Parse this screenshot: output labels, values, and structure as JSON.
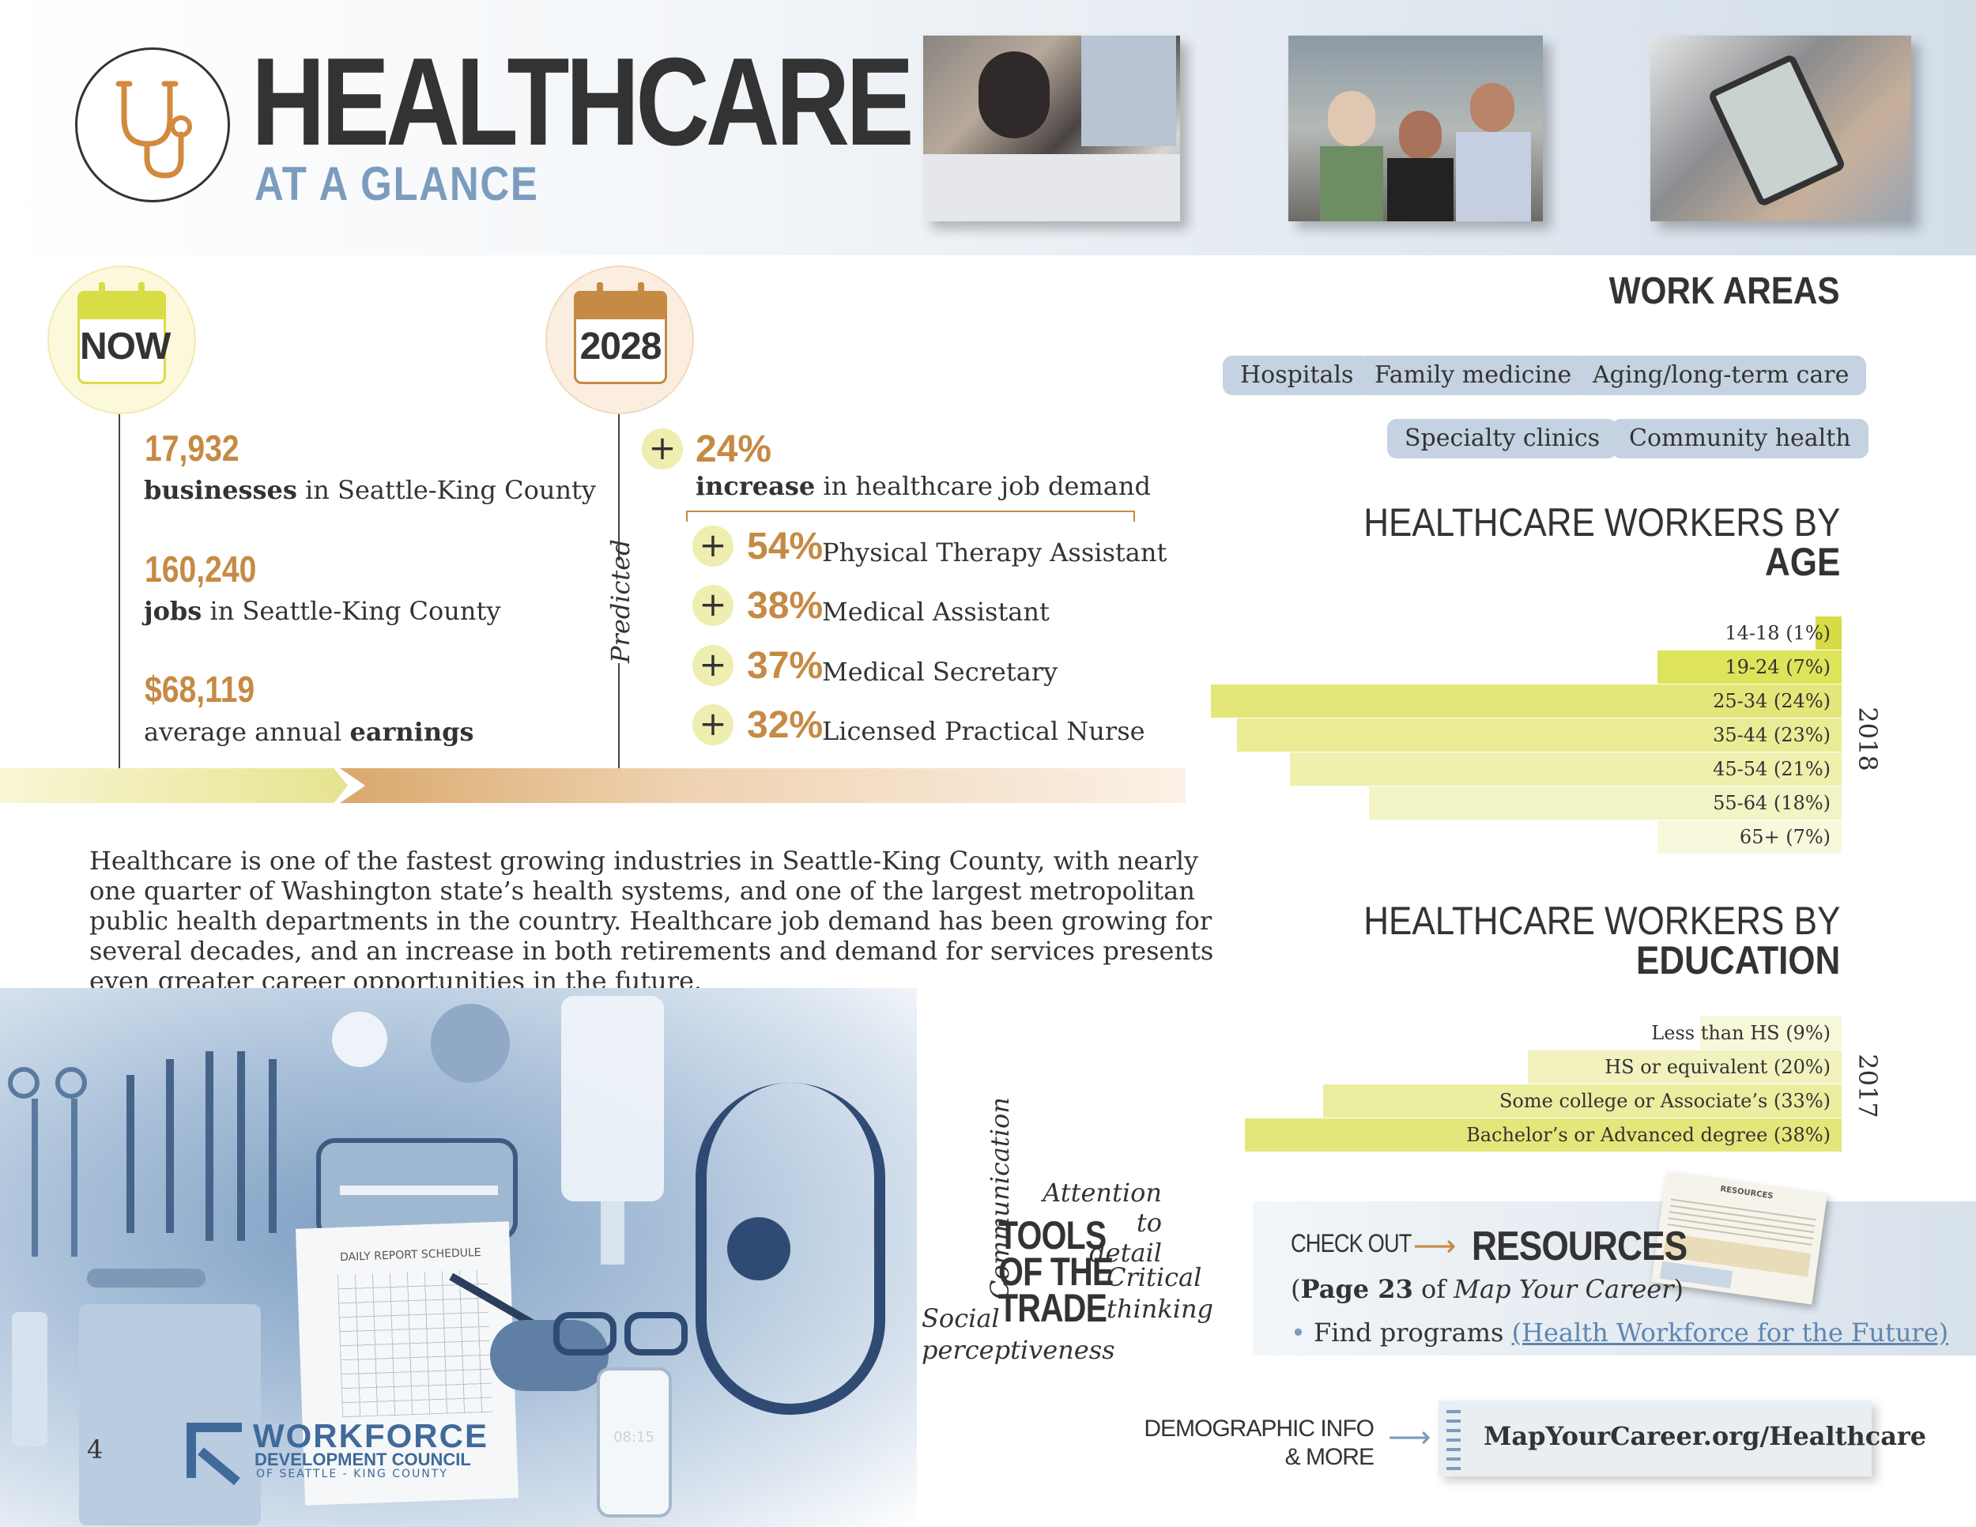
{
  "header": {
    "title": "HEALTHCARE",
    "subtitle": "AT A GLANCE",
    "logo_icon": "stethoscope-icon"
  },
  "timeline": {
    "now_label": "NOW",
    "future_label": "2028",
    "predicted_label": "Predicted",
    "now_stats": [
      {
        "value": "17,932",
        "bold": "businesses",
        "rest": " in Seattle-King County"
      },
      {
        "value": "160,240",
        "bold": "jobs",
        "rest": " in Seattle-King County"
      },
      {
        "value": "$68,119",
        "pre": "average annual ",
        "bold": "earnings"
      }
    ],
    "headline": {
      "sign": "+",
      "value": "24%",
      "bold": "increase",
      "rest": " in healthcare job demand"
    },
    "jobs": [
      {
        "sign": "+",
        "value": "54%",
        "label": "Physical Therapy Assistant"
      },
      {
        "sign": "+",
        "value": "38%",
        "label": "Medical Assistant"
      },
      {
        "sign": "+",
        "value": "37%",
        "label": "Medical Secretary"
      },
      {
        "sign": "+",
        "value": "32%",
        "label": "Licensed Practical Nurse"
      }
    ]
  },
  "description": "Healthcare is one of the fastest growing industries in Seattle-King County, with nearly one quarter of Washington state’s health systems, and one of the largest metropolitan public health departments in the country. Healthcare job demand has been growing for several decades, and an increase in both retirements and demand for services presents even greater career opportunities in the future.",
  "work_areas": {
    "title": "WORK AREAS",
    "items": [
      "Hospitals",
      "Family medicine",
      "Aging/long-term care",
      "Specialty clinics",
      "Community health"
    ]
  },
  "age_chart": {
    "title_line1": "HEALTHCARE WORKERS BY",
    "title_line2": "AGE",
    "year": "2018"
  },
  "education_chart": {
    "title_line1": "HEALTHCARE WORKERS BY",
    "title_line2": "EDUCATION",
    "year": "2017"
  },
  "chart_data": [
    {
      "type": "bar",
      "orientation": "horizontal",
      "title": "HEALTHCARE WORKERS BY AGE",
      "year": "2018",
      "categories": [
        "14-18 (1%)",
        "19-24 (7%)",
        "25-34 (24%)",
        "35-44 (23%)",
        "45-54 (21%)",
        "55-64 (18%)",
        "65+ (7%)"
      ],
      "values": [
        1,
        7,
        24,
        23,
        21,
        18,
        7
      ],
      "colors": [
        "#d6dc45",
        "#dde45a",
        "#e3e77a",
        "#e9ec95",
        "#eef0ae",
        "#f3f4c6",
        "#f8f8dd"
      ],
      "xlim": [
        0,
        24
      ]
    },
    {
      "type": "bar",
      "orientation": "horizontal",
      "title": "HEALTHCARE WORKERS BY EDUCATION",
      "year": "2017",
      "categories": [
        "Less than HS (9%)",
        "HS or equivalent (20%)",
        "Some college or Associate’s (33%)",
        "Bachelor’s or Advanced degree (38%)"
      ],
      "values": [
        9,
        20,
        33,
        38
      ],
      "colors": [
        "#f7f7d9",
        "#f1f2bd",
        "#ebed9f",
        "#e3e77a"
      ],
      "xlim": [
        0,
        38
      ]
    }
  ],
  "tools": {
    "title": [
      "TOOLS",
      "OF THE",
      "TRADE"
    ],
    "skills": {
      "communication": "Communication",
      "attention_1": "Attention to",
      "attention_2": "detail",
      "critical_1": "Critical",
      "critical_2": "thinking",
      "social_1": "Social",
      "social_2": "perceptiveness"
    }
  },
  "resources": {
    "checkout": "CHECK OUT",
    "title": "RESOURCES",
    "page_bold": "Page 23",
    "page_of": " of ",
    "page_italic": "Map Your Career",
    "bullet_text": "Find programs ",
    "link": "(Health Workforce for the Future)",
    "thumb_title": "RESOURCES"
  },
  "demographic": {
    "line1": "DEMOGRAPHIC INFO",
    "line2": "& MORE",
    "url": "MapYourCareer.org/Healthcare"
  },
  "footer": {
    "page_number": "4",
    "org_line1": "WORKFORCE",
    "org_line2": "DEVELOPMENT COUNCIL",
    "org_line3": "OF SEATTLE - KING COUNTY"
  },
  "image_props": {
    "clipboard_header": "DAILY REPORT SCHEDULE",
    "phone_time": "08:15"
  },
  "colors": {
    "accent_orange": "#c58a44",
    "accent_blue": "#7c9cbf",
    "pill_blue": "#c4d2e1",
    "bar_yellow": "#e3e77a"
  }
}
